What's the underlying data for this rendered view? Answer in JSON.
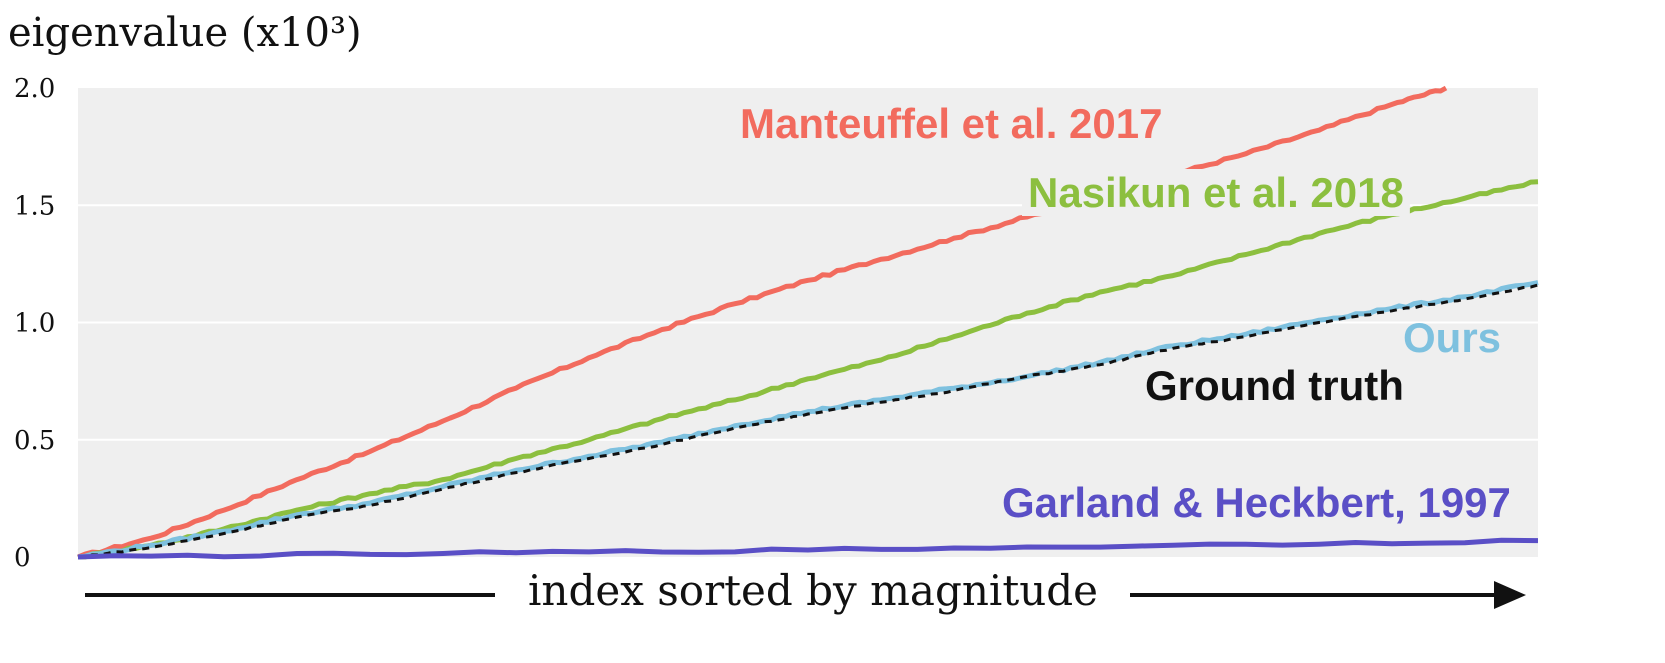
{
  "chart_data": {
    "type": "line",
    "ylabel": "eigenvalue (x10³)",
    "xlabel": "index sorted by magnitude",
    "xlim": [
      0,
      100
    ],
    "ylim": [
      0,
      2.0
    ],
    "yticks": [
      {
        "value": 0,
        "label": "0"
      },
      {
        "value": 0.5,
        "label": "0.5"
      },
      {
        "value": 1.0,
        "label": "1.0"
      },
      {
        "value": 1.5,
        "label": "1.5"
      },
      {
        "value": 2.0,
        "label": "2.0"
      }
    ],
    "grid": true,
    "background": "#efefef",
    "series": [
      {
        "name": "Manteuffel et al. 2017",
        "color": "#f26b5e",
        "style": "solid",
        "x": [
          0,
          5,
          10,
          15,
          20,
          25,
          30,
          35,
          40,
          45,
          50,
          55,
          60,
          65,
          70,
          75,
          80,
          85,
          90,
          93.7
        ],
        "y": [
          0,
          0.08,
          0.2,
          0.33,
          0.45,
          0.58,
          0.72,
          0.85,
          0.97,
          1.08,
          1.18,
          1.27,
          1.36,
          1.45,
          1.53,
          1.63,
          1.72,
          1.82,
          1.93,
          2.0
        ]
      },
      {
        "name": "Nasikun et al. 2018",
        "color": "#8cbf3f",
        "style": "solid",
        "x": [
          0,
          5,
          10,
          15,
          20,
          25,
          30,
          35,
          40,
          45,
          50,
          55,
          60,
          65,
          70,
          75,
          80,
          85,
          90,
          95,
          100
        ],
        "y": [
          0,
          0.05,
          0.12,
          0.2,
          0.27,
          0.33,
          0.42,
          0.5,
          0.59,
          0.67,
          0.76,
          0.84,
          0.94,
          1.04,
          1.13,
          1.2,
          1.29,
          1.38,
          1.46,
          1.53,
          1.6
        ]
      },
      {
        "name": "Ours",
        "color": "#7ec1df",
        "style": "solid",
        "x": [
          0,
          5,
          10,
          15,
          20,
          25,
          30,
          35,
          40,
          45,
          50,
          55,
          60,
          65,
          70,
          75,
          80,
          85,
          90,
          95,
          100
        ],
        "y": [
          0,
          0.05,
          0.11,
          0.18,
          0.23,
          0.3,
          0.37,
          0.43,
          0.49,
          0.56,
          0.62,
          0.67,
          0.72,
          0.77,
          0.83,
          0.9,
          0.95,
          1.01,
          1.06,
          1.11,
          1.17
        ]
      },
      {
        "name": "Ground truth",
        "color": "#111111",
        "style": "dashed",
        "x": [
          0,
          5,
          10,
          15,
          20,
          25,
          30,
          35,
          40,
          45,
          50,
          55,
          60,
          65,
          70,
          75,
          80,
          85,
          90,
          95,
          100
        ],
        "y": [
          0,
          0.04,
          0.1,
          0.17,
          0.22,
          0.29,
          0.36,
          0.42,
          0.48,
          0.55,
          0.61,
          0.66,
          0.71,
          0.77,
          0.82,
          0.89,
          0.94,
          1.0,
          1.05,
          1.1,
          1.16
        ]
      },
      {
        "name": "Garland & Heckbert, 1997",
        "color": "#5a4fc6",
        "style": "solid",
        "x": [
          0,
          25,
          50,
          75,
          100
        ],
        "y": [
          0,
          0.015,
          0.03,
          0.05,
          0.07
        ]
      }
    ]
  }
}
